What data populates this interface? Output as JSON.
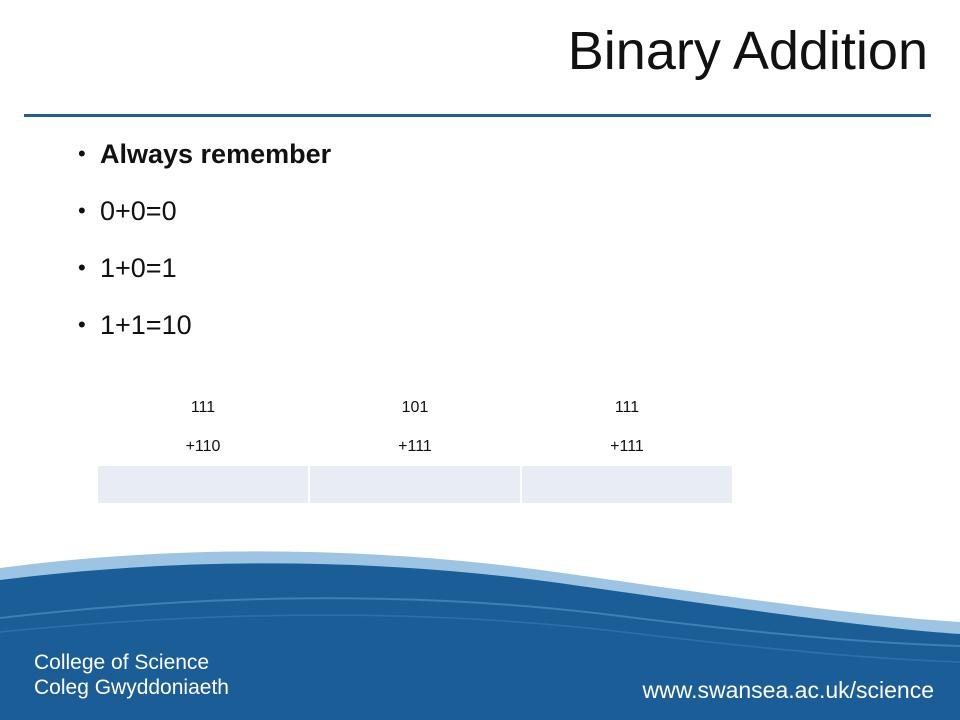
{
  "slide": {
    "title": "Binary Addition",
    "bullets": [
      {
        "text": "Always remember",
        "bold": true
      },
      {
        "text": "0+0=0",
        "bold": false
      },
      {
        "text": "1+0=1",
        "bold": false
      },
      {
        "text": "1+1=10",
        "bold": false
      }
    ],
    "bullet_glyph": "•",
    "table": {
      "rows": [
        [
          "111",
          "101",
          "111"
        ],
        [
          "+110",
          "+111",
          "+111"
        ],
        [
          "",
          "",
          ""
        ]
      ],
      "answer_fill": "#e8edf5"
    }
  },
  "footer": {
    "college_en": "College of Science",
    "college_cy": "Coleg Gwyddoniaeth",
    "url": "www.swansea.ac.uk/science",
    "brand_color": "#1b5e97",
    "wave_light": "#9ec4e3"
  }
}
